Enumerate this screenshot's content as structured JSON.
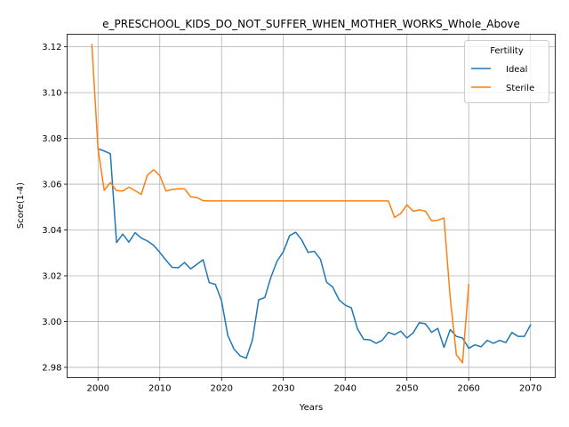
{
  "chart_data": {
    "type": "line",
    "title": "e_PRESCHOOL_KIDS_DO_NOT_SUFFER_WHEN_MOTHER_WORKS_Whole_Above",
    "xlabel": "Years",
    "ylabel": "Score(1-4)",
    "xlim": [
      1995,
      2074
    ],
    "ylim": [
      2.9755,
      3.1255
    ],
    "xticks": [
      2000,
      2010,
      2020,
      2030,
      2040,
      2050,
      2060,
      2070
    ],
    "yticks": [
      2.98,
      3.0,
      3.02,
      3.04,
      3.06,
      3.08,
      3.1,
      3.12
    ],
    "ytick_labels": [
      "2.98",
      "3.00",
      "3.02",
      "3.04",
      "3.06",
      "3.08",
      "3.10",
      "3.12"
    ],
    "grid": true,
    "legend": {
      "title": "Fertility",
      "placement": "top-right"
    },
    "series": [
      {
        "name": "Ideal",
        "color": "#1f77b4",
        "x": [
          2000,
          2001,
          2002,
          2003,
          2004,
          2005,
          2006,
          2007,
          2008,
          2009,
          2010,
          2011,
          2012,
          2013,
          2014,
          2015,
          2016,
          2017,
          2018,
          2019,
          2020,
          2021,
          2022,
          2023,
          2024,
          2025,
          2026,
          2027,
          2028,
          2029,
          2030,
          2031,
          2032,
          2033,
          2034,
          2035,
          2036,
          2037,
          2038,
          2039,
          2040,
          2041,
          2042,
          2043,
          2044,
          2045,
          2046,
          2047,
          2048,
          2049,
          2050,
          2051,
          2052,
          2053,
          2054,
          2055,
          2056,
          2057,
          2058,
          2059,
          2060,
          2061,
          2062,
          2063,
          2064,
          2065,
          2066,
          2067,
          2068,
          2069,
          2070
        ],
        "y": [
          3.0755,
          3.0745,
          3.0733,
          3.0345,
          3.0382,
          3.0347,
          3.0388,
          3.0365,
          3.0352,
          3.0333,
          3.0302,
          3.0268,
          3.0237,
          3.0235,
          3.0258,
          3.023,
          3.025,
          3.027,
          3.017,
          3.0162,
          3.009,
          2.994,
          2.988,
          2.985,
          2.984,
          2.992,
          3.0095,
          3.0105,
          3.0195,
          3.0265,
          3.0305,
          3.0375,
          3.039,
          3.0355,
          3.0302,
          3.0307,
          3.0272,
          3.0172,
          3.015,
          3.0095,
          3.0072,
          3.006,
          2.9968,
          2.9922,
          2.992,
          2.9905,
          2.9918,
          2.9953,
          2.9943,
          2.9958,
          2.9928,
          2.995,
          2.9995,
          2.999,
          2.9953,
          2.997,
          2.9887,
          2.9965,
          2.9935,
          2.9928,
          2.9883,
          2.9898,
          2.989,
          2.9918,
          2.9905,
          2.9918,
          2.9908,
          2.9952,
          2.9935,
          2.9935,
          2.9985
        ]
      },
      {
        "name": "Sterile",
        "color": "#ff7f0e",
        "x": [
          1999,
          2000,
          2001,
          2002,
          2003,
          2004,
          2005,
          2006,
          2007,
          2008,
          2009,
          2010,
          2011,
          2012,
          2013,
          2014,
          2015,
          2016,
          2017,
          2018,
          2019,
          2020,
          2021,
          2022,
          2023,
          2024,
          2025,
          2026,
          2027,
          2028,
          2029,
          2030,
          2031,
          2032,
          2033,
          2034,
          2035,
          2036,
          2037,
          2038,
          2039,
          2040,
          2041,
          2042,
          2043,
          2044,
          2045,
          2046,
          2047,
          2048,
          2049,
          2050,
          2051,
          2052,
          2053,
          2054,
          2055,
          2056,
          2057,
          2058,
          2059,
          2060
        ],
        "y": [
          3.121,
          3.0755,
          3.0573,
          3.0607,
          3.0572,
          3.057,
          3.0587,
          3.0572,
          3.0555,
          3.064,
          3.0663,
          3.0638,
          3.057,
          3.0577,
          3.058,
          3.058,
          3.0545,
          3.0542,
          3.0528,
          3.0527,
          3.0527,
          3.0527,
          3.0527,
          3.0527,
          3.0527,
          3.0527,
          3.0527,
          3.0527,
          3.0527,
          3.0527,
          3.0527,
          3.0527,
          3.0527,
          3.0527,
          3.0527,
          3.0527,
          3.0527,
          3.0527,
          3.0527,
          3.0527,
          3.0527,
          3.0527,
          3.0527,
          3.0527,
          3.0527,
          3.0527,
          3.0527,
          3.0527,
          3.0527,
          3.0455,
          3.0472,
          3.051,
          3.0482,
          3.0488,
          3.0482,
          3.044,
          3.0443,
          3.0452,
          3.0105,
          2.9855,
          2.982,
          3.0162
        ]
      }
    ]
  }
}
